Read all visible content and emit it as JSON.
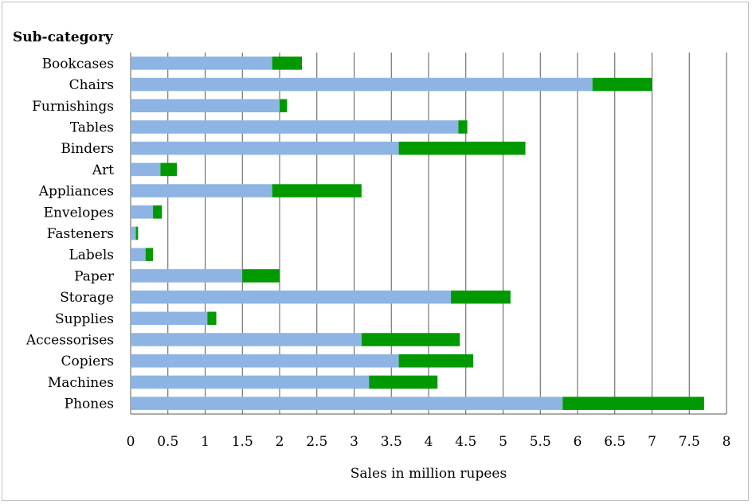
{
  "chart_data": {
    "type": "bar",
    "orientation": "horizontal",
    "stacked": true,
    "title": "Sub-category",
    "xlabel": "Sales in million rupees",
    "ylabel": "",
    "xlim": [
      0,
      8
    ],
    "x_ticks": [
      "0",
      "0.5",
      "1",
      "1.5",
      "2",
      "2.5",
      "3",
      "3.5",
      "4",
      "4.5",
      "5",
      "5.5",
      "6",
      "6.5",
      "7",
      "7.5",
      "8"
    ],
    "grid": true,
    "legend": "none",
    "categories": [
      "Bookcases",
      "Chairs",
      "Furnishings",
      "Tables",
      "Binders",
      "Art",
      "Appliances",
      "Envelopes",
      "Fasteners",
      "Labels",
      "Paper",
      "Storage",
      "Supplies",
      "Accessorises",
      "Copiers",
      "Machines",
      "Phones"
    ],
    "series": [
      {
        "color": "#8db4e3",
        "values": [
          1.9,
          6.2,
          2.0,
          4.4,
          3.6,
          0.4,
          1.9,
          0.3,
          0.07,
          0.2,
          1.5,
          4.3,
          1.03,
          3.1,
          3.6,
          3.2,
          5.8
        ]
      },
      {
        "color": "#009a00",
        "values": [
          0.4,
          0.8,
          0.1,
          0.12,
          1.7,
          0.22,
          1.2,
          0.12,
          0.03,
          0.1,
          0.5,
          0.8,
          0.12,
          1.32,
          1.0,
          0.92,
          1.9
        ]
      }
    ]
  }
}
